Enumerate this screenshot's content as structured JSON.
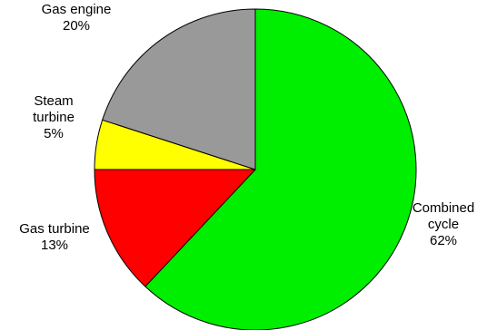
{
  "chart_data": {
    "type": "pie",
    "title": "",
    "start_angle_deg": 0,
    "direction": "clockwise",
    "legend": "none",
    "slices": [
      {
        "label": [
          "Combined",
          "cycle"
        ],
        "value": 62,
        "value_label": "62%",
        "color": "#00ee00"
      },
      {
        "label": [
          "Gas turbine"
        ],
        "value": 13,
        "value_label": "13%",
        "color": "#ff0000"
      },
      {
        "label": [
          "Steam",
          "turbine"
        ],
        "value": 5,
        "value_label": "5%",
        "color": "#ffff00"
      },
      {
        "label": [
          "Gas engine"
        ],
        "value": 20,
        "value_label": "20%",
        "color": "#999999"
      }
    ]
  }
}
